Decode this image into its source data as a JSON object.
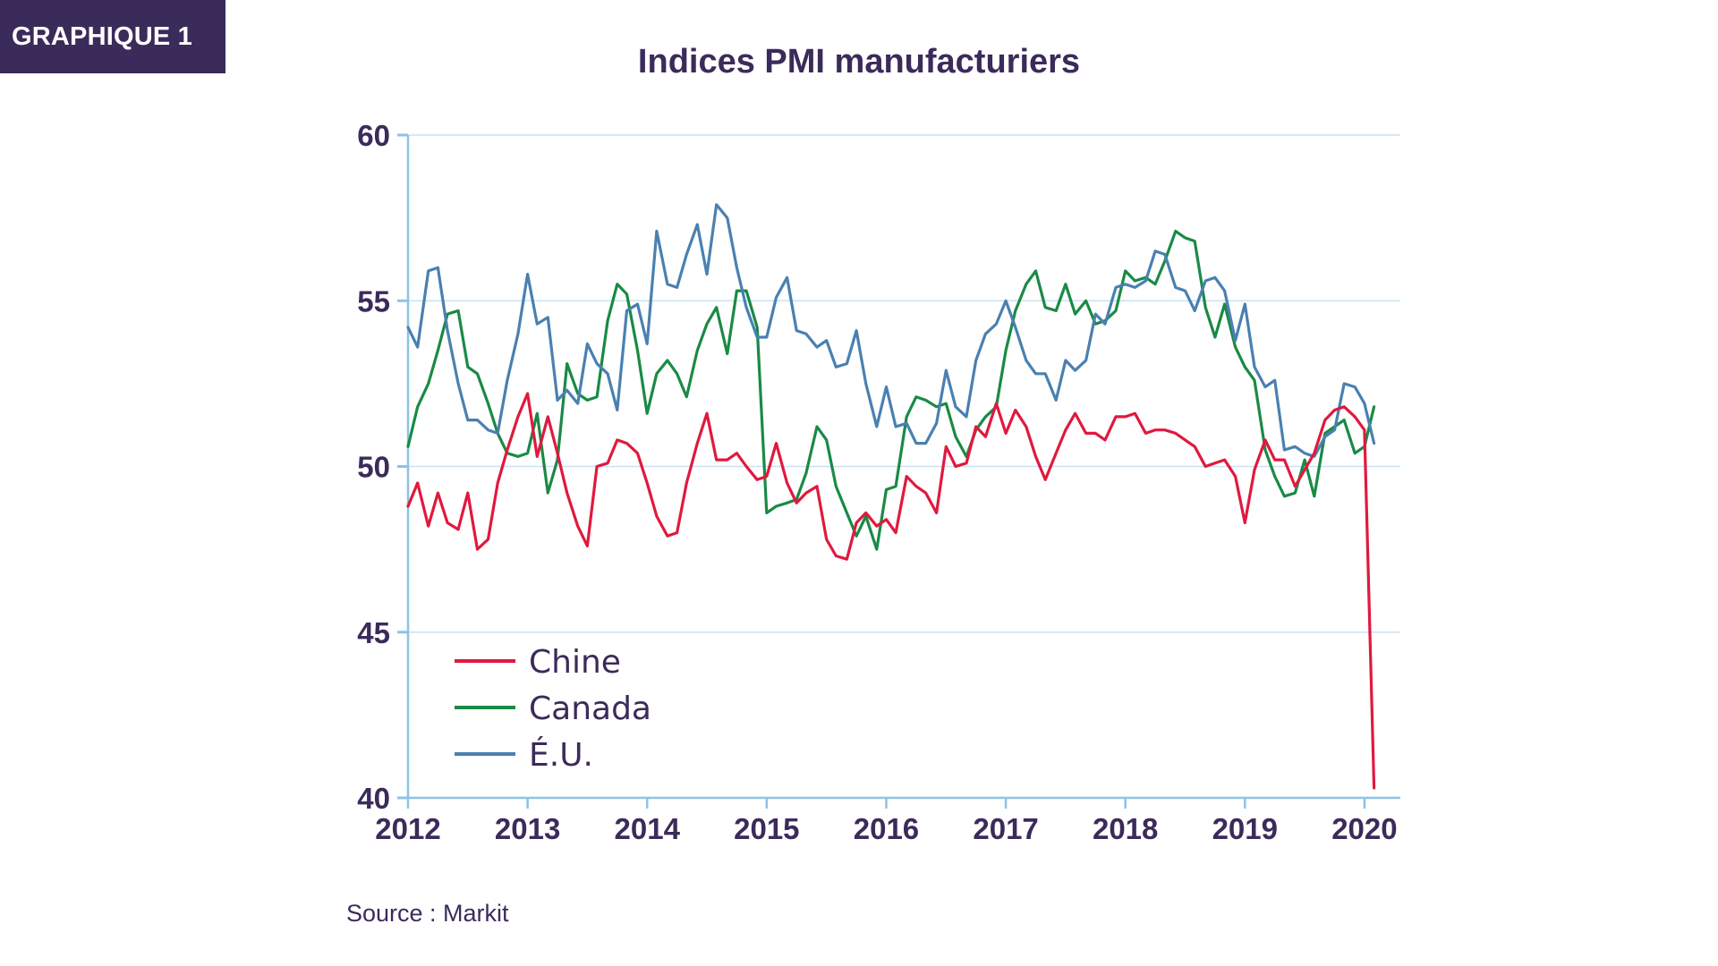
{
  "badge": "GRAPHIQUE 1",
  "source": "Source : Markit",
  "chart_data": {
    "type": "line",
    "title": "Indices PMI manufacturiers",
    "xlabel": "",
    "ylabel": "",
    "ylim": [
      40,
      60
    ],
    "xlim": [
      2012.0,
      2020.3
    ],
    "yticks": [
      "40",
      "45",
      "50",
      "55",
      "60"
    ],
    "xticks": [
      "2012",
      "2013",
      "2014",
      "2015",
      "2016",
      "2017",
      "2018",
      "2019",
      "2020"
    ],
    "grid": true,
    "legend_position": "bottom-left",
    "series": [
      {
        "name": "Chine",
        "color": "#e0193e",
        "x": [
          2012.0,
          2012.08,
          2012.17,
          2012.25,
          2012.33,
          2012.42,
          2012.5,
          2012.58,
          2012.67,
          2012.75,
          2012.83,
          2012.92,
          2013.0,
          2013.08,
          2013.17,
          2013.25,
          2013.33,
          2013.42,
          2013.5,
          2013.58,
          2013.67,
          2013.75,
          2013.83,
          2013.92,
          2014.0,
          2014.08,
          2014.17,
          2014.25,
          2014.33,
          2014.42,
          2014.5,
          2014.58,
          2014.67,
          2014.75,
          2014.83,
          2014.92,
          2015.0,
          2015.08,
          2015.17,
          2015.25,
          2015.33,
          2015.42,
          2015.5,
          2015.58,
          2015.67,
          2015.75,
          2015.83,
          2015.92,
          2016.0,
          2016.08,
          2016.17,
          2016.25,
          2016.33,
          2016.42,
          2016.5,
          2016.58,
          2016.67,
          2016.75,
          2016.83,
          2016.92,
          2017.0,
          2017.08,
          2017.17,
          2017.25,
          2017.33,
          2017.42,
          2017.5,
          2017.58,
          2017.67,
          2017.75,
          2017.83,
          2017.92,
          2018.0,
          2018.08,
          2018.17,
          2018.25,
          2018.33,
          2018.42,
          2018.5,
          2018.58,
          2018.67,
          2018.75,
          2018.83,
          2018.92,
          2019.0,
          2019.08,
          2019.17,
          2019.25,
          2019.33,
          2019.42,
          2019.5,
          2019.58,
          2019.67,
          2019.75,
          2019.83,
          2019.92,
          2020.0,
          2020.08
        ],
        "values": [
          48.8,
          49.5,
          48.2,
          49.2,
          48.3,
          48.1,
          49.2,
          47.5,
          47.8,
          49.5,
          50.5,
          51.5,
          52.2,
          50.3,
          51.5,
          50.4,
          49.2,
          48.2,
          47.6,
          50.0,
          50.1,
          50.8,
          50.7,
          50.4,
          49.5,
          48.5,
          47.9,
          48.0,
          49.5,
          50.7,
          51.6,
          50.2,
          50.2,
          50.4,
          50.0,
          49.6,
          49.7,
          50.7,
          49.5,
          48.9,
          49.2,
          49.4,
          47.8,
          47.3,
          47.2,
          48.3,
          48.6,
          48.2,
          48.4,
          48.0,
          49.7,
          49.4,
          49.2,
          48.6,
          50.6,
          50.0,
          50.1,
          51.2,
          50.9,
          51.9,
          51.0,
          51.7,
          51.2,
          50.3,
          49.6,
          50.4,
          51.1,
          51.6,
          51.0,
          51.0,
          50.8,
          51.5,
          51.5,
          51.6,
          51.0,
          51.1,
          51.1,
          51.0,
          50.8,
          50.6,
          50.0,
          50.1,
          50.2,
          49.7,
          48.3,
          49.9,
          50.8,
          50.2,
          50.2,
          49.4,
          49.9,
          50.4,
          51.4,
          51.7,
          51.8,
          51.5,
          51.1,
          40.3
        ]
      },
      {
        "name": "Canada",
        "color": "#1a8a45",
        "x": [
          2012.0,
          2012.08,
          2012.17,
          2012.25,
          2012.33,
          2012.42,
          2012.5,
          2012.58,
          2012.67,
          2012.75,
          2012.83,
          2012.92,
          2013.0,
          2013.08,
          2013.17,
          2013.25,
          2013.33,
          2013.42,
          2013.5,
          2013.58,
          2013.67,
          2013.75,
          2013.83,
          2013.92,
          2014.0,
          2014.08,
          2014.17,
          2014.25,
          2014.33,
          2014.42,
          2014.5,
          2014.58,
          2014.67,
          2014.75,
          2014.83,
          2014.92,
          2015.0,
          2015.08,
          2015.17,
          2015.25,
          2015.33,
          2015.42,
          2015.5,
          2015.58,
          2015.67,
          2015.75,
          2015.83,
          2015.92,
          2016.0,
          2016.08,
          2016.17,
          2016.25,
          2016.33,
          2016.42,
          2016.5,
          2016.58,
          2016.67,
          2016.75,
          2016.83,
          2016.92,
          2017.0,
          2017.08,
          2017.17,
          2017.25,
          2017.33,
          2017.42,
          2017.5,
          2017.58,
          2017.67,
          2017.75,
          2017.83,
          2017.92,
          2018.0,
          2018.08,
          2018.17,
          2018.25,
          2018.33,
          2018.42,
          2018.5,
          2018.58,
          2018.67,
          2018.75,
          2018.83,
          2018.92,
          2019.0,
          2019.08,
          2019.17,
          2019.25,
          2019.33,
          2019.42,
          2019.5,
          2019.58,
          2019.67,
          2019.75,
          2019.83,
          2019.92,
          2020.0,
          2020.08
        ],
        "values": [
          50.6,
          51.8,
          52.5,
          53.5,
          54.6,
          54.7,
          53.0,
          52.8,
          51.9,
          51.0,
          50.4,
          50.3,
          50.4,
          51.6,
          49.2,
          50.2,
          53.1,
          52.2,
          52.0,
          52.1,
          54.4,
          55.5,
          55.2,
          53.5,
          51.6,
          52.8,
          53.2,
          52.8,
          52.1,
          53.5,
          54.3,
          54.8,
          53.4,
          55.3,
          55.3,
          54.2,
          48.6,
          48.8,
          48.9,
          49.0,
          49.8,
          51.2,
          50.8,
          49.4,
          48.6,
          47.9,
          48.5,
          47.5,
          49.3,
          49.4,
          51.5,
          52.1,
          52.0,
          51.8,
          51.9,
          50.9,
          50.3,
          51.1,
          51.5,
          51.8,
          53.5,
          54.7,
          55.5,
          55.9,
          54.8,
          54.7,
          55.5,
          54.6,
          55.0,
          54.3,
          54.4,
          54.7,
          55.9,
          55.6,
          55.7,
          55.5,
          56.2,
          57.1,
          56.9,
          56.8,
          54.8,
          53.9,
          54.9,
          53.6,
          53.0,
          52.6,
          50.5,
          49.7,
          49.1,
          49.2,
          50.2,
          49.1,
          51.0,
          51.2,
          51.4,
          50.4,
          50.6,
          51.8
        ]
      },
      {
        "name": "É.U.",
        "color": "#4a80b0",
        "x": [
          2012.0,
          2012.08,
          2012.17,
          2012.25,
          2012.33,
          2012.42,
          2012.5,
          2012.58,
          2012.67,
          2012.75,
          2012.83,
          2012.92,
          2013.0,
          2013.08,
          2013.17,
          2013.25,
          2013.33,
          2013.42,
          2013.5,
          2013.58,
          2013.67,
          2013.75,
          2013.83,
          2013.92,
          2014.0,
          2014.08,
          2014.17,
          2014.25,
          2014.33,
          2014.42,
          2014.5,
          2014.58,
          2014.67,
          2014.75,
          2014.83,
          2014.92,
          2015.0,
          2015.08,
          2015.17,
          2015.25,
          2015.33,
          2015.42,
          2015.5,
          2015.58,
          2015.67,
          2015.75,
          2015.83,
          2015.92,
          2016.0,
          2016.08,
          2016.17,
          2016.25,
          2016.33,
          2016.42,
          2016.5,
          2016.58,
          2016.67,
          2016.75,
          2016.83,
          2016.92,
          2017.0,
          2017.08,
          2017.17,
          2017.25,
          2017.33,
          2017.42,
          2017.5,
          2017.58,
          2017.67,
          2017.75,
          2017.83,
          2017.92,
          2018.0,
          2018.08,
          2018.17,
          2018.25,
          2018.33,
          2018.42,
          2018.5,
          2018.58,
          2018.67,
          2018.75,
          2018.83,
          2018.92,
          2019.0,
          2019.08,
          2019.17,
          2019.25,
          2019.33,
          2019.42,
          2019.5,
          2019.58,
          2019.67,
          2019.75,
          2019.83,
          2019.92,
          2020.0,
          2020.08
        ],
        "values": [
          54.2,
          53.6,
          55.9,
          56.0,
          54.1,
          52.5,
          51.4,
          51.4,
          51.1,
          51.0,
          52.6,
          54.0,
          55.8,
          54.3,
          54.5,
          52.0,
          52.3,
          51.9,
          53.7,
          53.1,
          52.8,
          51.7,
          54.7,
          54.9,
          53.7,
          57.1,
          55.5,
          55.4,
          56.4,
          57.3,
          55.8,
          57.9,
          57.5,
          56.0,
          54.8,
          53.9,
          53.9,
          55.1,
          55.7,
          54.1,
          54.0,
          53.6,
          53.8,
          53.0,
          53.1,
          54.1,
          52.5,
          51.2,
          52.4,
          51.2,
          51.3,
          50.7,
          50.7,
          51.3,
          52.9,
          51.8,
          51.5,
          53.2,
          54.0,
          54.3,
          55.0,
          54.2,
          53.2,
          52.8,
          52.8,
          52.0,
          53.2,
          52.9,
          53.2,
          54.6,
          54.3,
          55.4,
          55.5,
          55.4,
          55.6,
          56.5,
          56.4,
          55.4,
          55.3,
          54.7,
          55.6,
          55.7,
          55.3,
          53.8,
          54.9,
          53.0,
          52.4,
          52.6,
          50.5,
          50.6,
          50.4,
          50.3,
          50.9,
          51.1,
          52.5,
          52.4,
          51.9,
          50.7
        ]
      }
    ]
  }
}
